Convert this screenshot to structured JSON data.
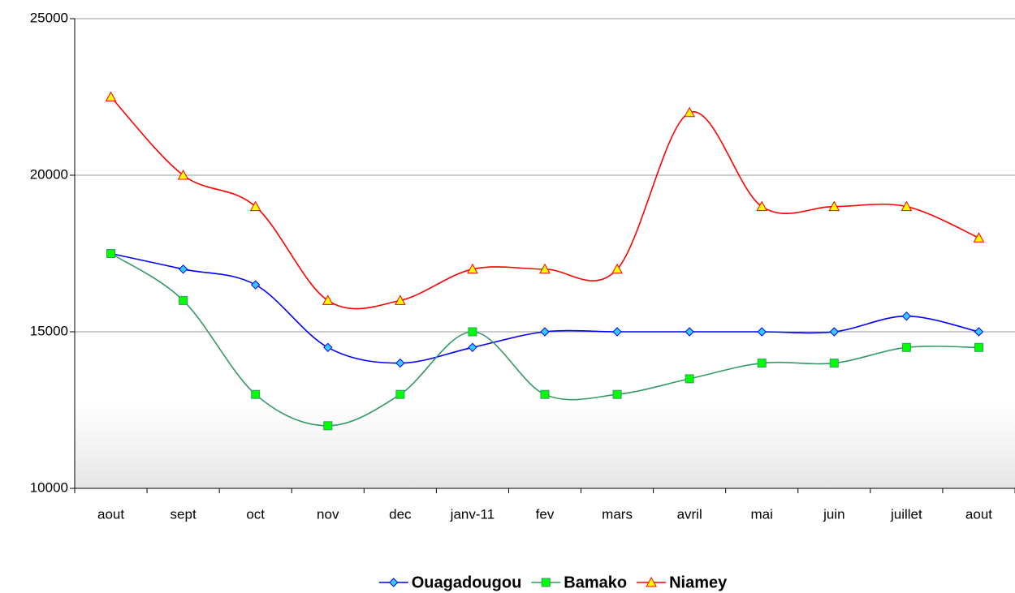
{
  "chart_data": {
    "type": "line",
    "categories": [
      "aout",
      "sept",
      "oct",
      "nov",
      "dec",
      "janv-11",
      "fev",
      "mars",
      "avril",
      "mai",
      "juin",
      "juillet",
      "aout"
    ],
    "series": [
      {
        "name": "Ouagadougou",
        "color": "#0000ff",
        "marker": "diamond",
        "marker_color": "#33ccff",
        "values": [
          17500,
          17000,
          16500,
          14500,
          14000,
          14500,
          15000,
          15000,
          15000,
          15000,
          15000,
          15500,
          15000
        ]
      },
      {
        "name": "Bamako",
        "color": "#339966",
        "marker": "square",
        "marker_color": "#00ff00",
        "values": [
          17500,
          16000,
          13000,
          12000,
          13000,
          15000,
          13000,
          13000,
          13500,
          14000,
          14000,
          14500,
          14500
        ]
      },
      {
        "name": "Niamey",
        "color": "#ff0000",
        "marker": "triangle",
        "marker_color": "#ffff00",
        "values": [
          22500,
          20000,
          19000,
          16000,
          16000,
          17000,
          17000,
          17000,
          22000,
          19000,
          19000,
          19000,
          18000
        ]
      }
    ],
    "ylim": [
      10000,
      25000
    ],
    "yticks": [
      10000,
      15000,
      20000,
      25000
    ],
    "grid": true,
    "smooth": true,
    "legend": "bottom"
  }
}
